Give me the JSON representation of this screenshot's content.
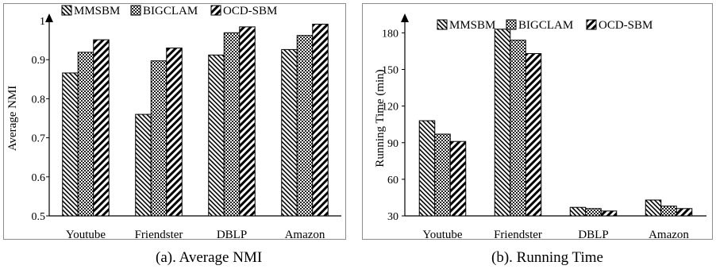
{
  "patterns": [
    {
      "id": "pat-mmsbm",
      "style": "backslash"
    },
    {
      "id": "pat-bigclam",
      "style": "checker"
    },
    {
      "id": "pat-ocdsbm",
      "style": "slash"
    }
  ],
  "chart_data": [
    {
      "type": "bar",
      "title": "",
      "xlabel": "",
      "ylabel": "Average NMI",
      "categories": [
        "Youtube",
        "Friendster",
        "DBLP",
        "Amazon"
      ],
      "ylim": [
        0.5,
        1
      ],
      "yticks": [
        "0.5",
        "0.6",
        "0.7",
        "0.8",
        "0.9",
        "1"
      ],
      "legend_position": "top",
      "grid": false,
      "series": [
        {
          "name": "MMSBM",
          "pattern": "backslash",
          "values": [
            0.866,
            0.76,
            0.912,
            0.926
          ]
        },
        {
          "name": "BIGCLAM",
          "pattern": "checker",
          "values": [
            0.919,
            0.897,
            0.969,
            0.962
          ]
        },
        {
          "name": "OCD-SBM",
          "pattern": "slash",
          "values": [
            0.951,
            0.93,
            0.984,
            0.991
          ]
        }
      ]
    },
    {
      "type": "bar",
      "title": "",
      "xlabel": "",
      "ylabel": "Running Time (min)",
      "categories": [
        "Youtube",
        "Friendster",
        "DBLP",
        "Amazon"
      ],
      "ylim": [
        30,
        180
      ],
      "yticks": [
        "30",
        "60",
        "90",
        "120",
        "150",
        "180"
      ],
      "legend_position": "top",
      "grid": false,
      "series": [
        {
          "name": "MMSBM",
          "pattern": "backslash",
          "values": [
            108,
            183,
            37,
            43
          ]
        },
        {
          "name": "BIGCLAM",
          "pattern": "checker",
          "values": [
            97,
            174,
            36,
            38
          ]
        },
        {
          "name": "OCD-SBM",
          "pattern": "slash",
          "values": [
            91,
            163,
            34,
            36
          ]
        }
      ]
    }
  ],
  "captions": {
    "a": "(a). Average NMI",
    "b": "(b). Running Time"
  }
}
